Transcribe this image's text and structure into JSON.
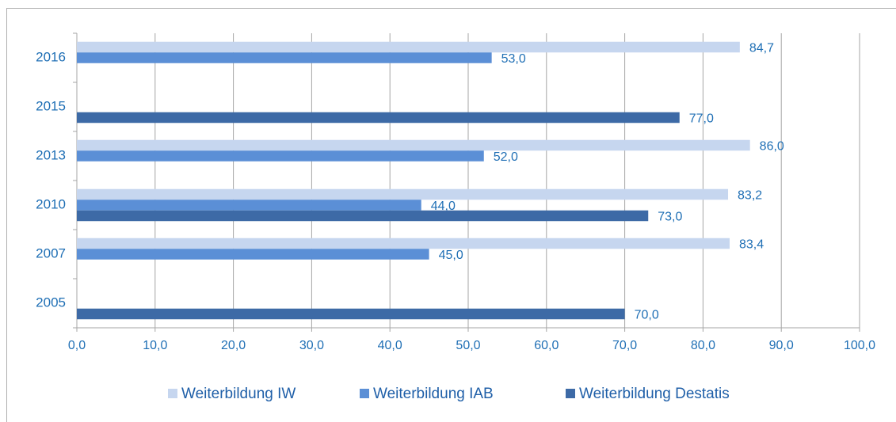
{
  "chart_data": {
    "type": "barh",
    "categories": [
      "2016",
      "2015",
      "2013",
      "2010",
      "2007",
      "2005"
    ],
    "series": [
      {
        "name": "Weiterbildung IW",
        "color": "#c6d6ef",
        "values": [
          84.7,
          null,
          86.0,
          83.2,
          83.4,
          null
        ],
        "value_labels": [
          "84,7",
          null,
          "86,0",
          "83,2",
          "83,4",
          null
        ]
      },
      {
        "name": "Weiterbildung IAB",
        "color": "#5b8fd6",
        "values": [
          53.0,
          null,
          52.0,
          44.0,
          45.0,
          null
        ],
        "value_labels": [
          "53,0",
          null,
          "52,0",
          "44,0",
          "45,0",
          null
        ]
      },
      {
        "name": "Weiterbildung Destatis",
        "color": "#3d6aa6",
        "values": [
          null,
          77.0,
          null,
          73.0,
          null,
          70.0
        ],
        "value_labels": [
          null,
          "77,0",
          null,
          "73,0",
          null,
          "70,0"
        ]
      }
    ],
    "xlim": [
      0,
      100
    ],
    "xticks": [
      {
        "value": 0,
        "label": "0,0"
      },
      {
        "value": 10,
        "label": "10,0"
      },
      {
        "value": 20,
        "label": "20,0"
      },
      {
        "value": 30,
        "label": "30,0"
      },
      {
        "value": 40,
        "label": "40,0"
      },
      {
        "value": 50,
        "label": "50,0"
      },
      {
        "value": 60,
        "label": "60,0"
      },
      {
        "value": 70,
        "label": "70,0"
      },
      {
        "value": 80,
        "label": "80,0"
      },
      {
        "value": 90,
        "label": "90,0"
      },
      {
        "value": 100,
        "label": "100,0"
      }
    ],
    "grid": true,
    "legend": "bottom"
  }
}
